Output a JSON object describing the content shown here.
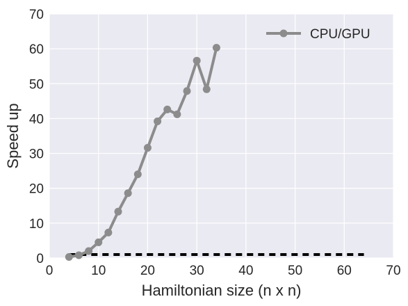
{
  "chart_data": {
    "type": "line",
    "xlabel": "Hamiltonian size (n x n)",
    "ylabel": "Speed up",
    "xlim": [
      0,
      70
    ],
    "ylim": [
      0,
      70
    ],
    "xticks": [
      0,
      10,
      20,
      30,
      40,
      50,
      60,
      70
    ],
    "yticks": [
      0,
      10,
      20,
      30,
      40,
      50,
      60,
      70
    ],
    "grid": true,
    "legend_position": "top-right",
    "background_color": "#eaeaf2",
    "grid_color": "#ffffff",
    "series": [
      {
        "name": "CPU/GPU",
        "color": "#8c8c8c",
        "style": "solid-with-markers",
        "x": [
          4,
          6,
          8,
          10,
          12,
          14,
          16,
          18,
          20,
          22,
          24,
          26,
          28,
          30,
          32,
          34
        ],
        "y": [
          0.3,
          0.8,
          2.0,
          4.5,
          7.3,
          13.3,
          18.6,
          24.0,
          31.6,
          39.2,
          42.6,
          41.2,
          47.9,
          56.6,
          48.4,
          60.3
        ]
      },
      {
        "color": "#000000",
        "style": "dashed",
        "x": [
          4,
          64
        ],
        "y": [
          1,
          1
        ]
      }
    ]
  }
}
